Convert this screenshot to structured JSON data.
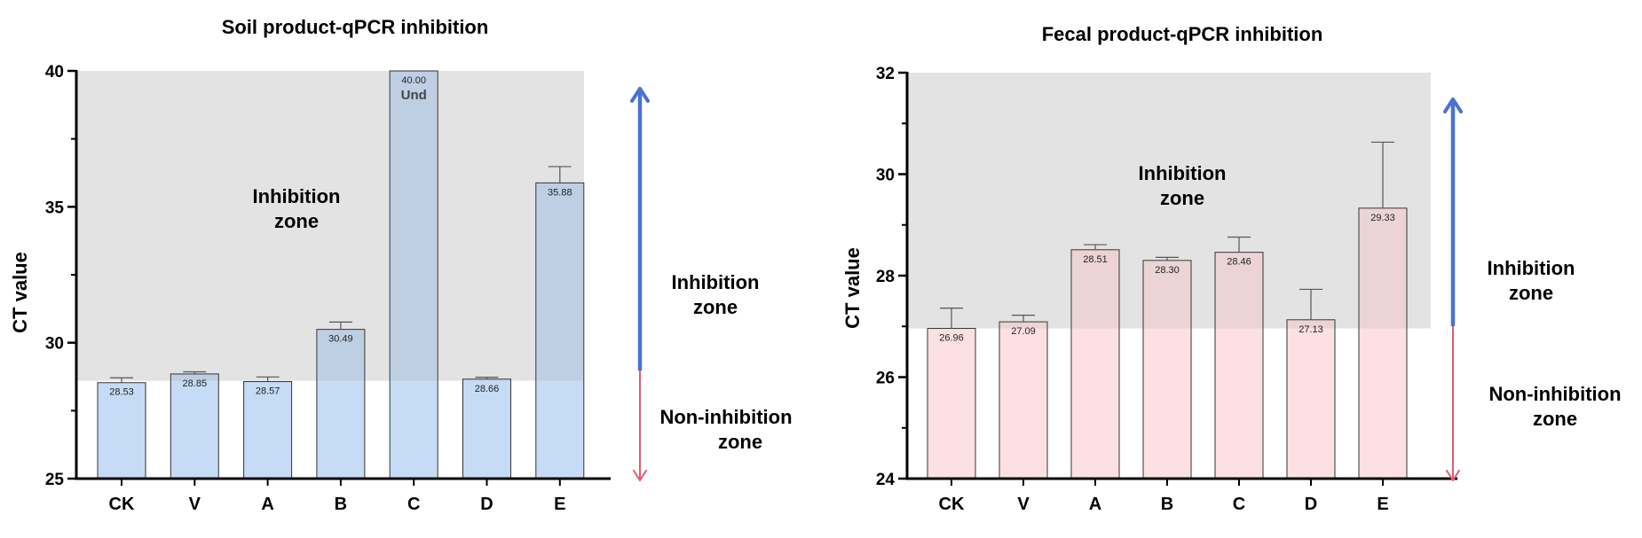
{
  "colors": {
    "soil_bar": "#c6dbf5",
    "fecal_bar": "#fde0e3",
    "inhibition_shade": "#d2d2d2",
    "arrow_up": "#4a72d0",
    "arrow_down": "#e05c70"
  },
  "chart_data": [
    {
      "type": "bar",
      "title": "Soil product-qPCR inhibition",
      "ylabel": "CT value",
      "xlabel": "",
      "ylim": [
        25,
        40
      ],
      "yticks": [
        "25",
        "30",
        "35",
        "40"
      ],
      "ytick_values": [
        25,
        30,
        35,
        40
      ],
      "categories": [
        "CK",
        "V",
        "A",
        "B",
        "C",
        "D",
        "E"
      ],
      "values": [
        28.53,
        28.85,
        28.57,
        30.49,
        40.0,
        28.66,
        35.88
      ],
      "errors": [
        0.18,
        0.08,
        0.17,
        0.27,
        0,
        0.07,
        0.6
      ],
      "data_labels": [
        "28.53",
        "28.85",
        "28.57",
        "30.49",
        "40.00",
        "28.66",
        "35.88"
      ],
      "extra_label": "Und",
      "extra_label_index": 4,
      "inhibition_threshold": 28.6,
      "inner_zone_label": [
        "Inhibition",
        "zone"
      ],
      "side_upper_label": [
        "Inhibition",
        "zone"
      ],
      "side_lower_label": [
        "Non-inhibition",
        "zone"
      ]
    },
    {
      "type": "bar",
      "title": "Fecal product-qPCR inhibition",
      "ylabel": "CT value",
      "xlabel": "",
      "ylim": [
        24,
        32
      ],
      "yticks": [
        "24",
        "26",
        "28",
        "30",
        "32"
      ],
      "ytick_values": [
        24,
        26,
        28,
        30,
        32
      ],
      "categories": [
        "CK",
        "V",
        "A",
        "B",
        "C",
        "D",
        "E"
      ],
      "values": [
        26.96,
        27.09,
        28.51,
        28.3,
        28.46,
        27.13,
        29.33
      ],
      "errors": [
        0.4,
        0.13,
        0.1,
        0.06,
        0.3,
        0.6,
        1.3
      ],
      "data_labels": [
        "26.96",
        "27.09",
        "28.51",
        "28.30",
        "28.46",
        "27.13",
        "29.33"
      ],
      "inhibition_threshold": 26.96,
      "inner_zone_label": [
        "Inhibition",
        "zone"
      ],
      "side_upper_label": [
        "Inhibition",
        "zone"
      ],
      "side_lower_label": [
        "Non-inhibition",
        "zone"
      ]
    }
  ]
}
